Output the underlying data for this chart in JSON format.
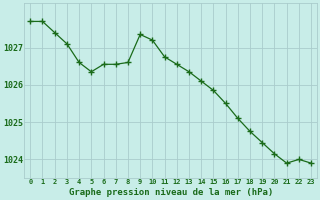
{
  "x": [
    0,
    1,
    2,
    3,
    4,
    5,
    6,
    7,
    8,
    9,
    10,
    11,
    12,
    13,
    14,
    15,
    16,
    17,
    18,
    19,
    20,
    21,
    22,
    23
  ],
  "y": [
    1027.7,
    1027.7,
    1027.4,
    1027.1,
    1026.6,
    1026.35,
    1026.55,
    1026.55,
    1026.6,
    1027.35,
    1027.2,
    1026.75,
    1026.55,
    1026.35,
    1026.1,
    1025.85,
    1025.5,
    1025.1,
    1024.75,
    1024.45,
    1024.15,
    1023.9,
    1024.0,
    1023.9
  ],
  "line_color": "#1a6b1a",
  "marker": "+",
  "marker_color": "#1a6b1a",
  "marker_size": 4,
  "background_color": "#c8ede8",
  "grid_color": "#aacccc",
  "xlabel": "Graphe pression niveau de la mer (hPa)",
  "xlabel_color": "#1a6b1a",
  "tick_color": "#1a6b1a",
  "ylim": [
    1023.5,
    1028.2
  ],
  "yticks": [
    1024,
    1025,
    1026,
    1027
  ],
  "xlim": [
    -0.5,
    23.5
  ],
  "xticks": [
    0,
    1,
    2,
    3,
    4,
    5,
    6,
    7,
    8,
    9,
    10,
    11,
    12,
    13,
    14,
    15,
    16,
    17,
    18,
    19,
    20,
    21,
    22,
    23
  ]
}
